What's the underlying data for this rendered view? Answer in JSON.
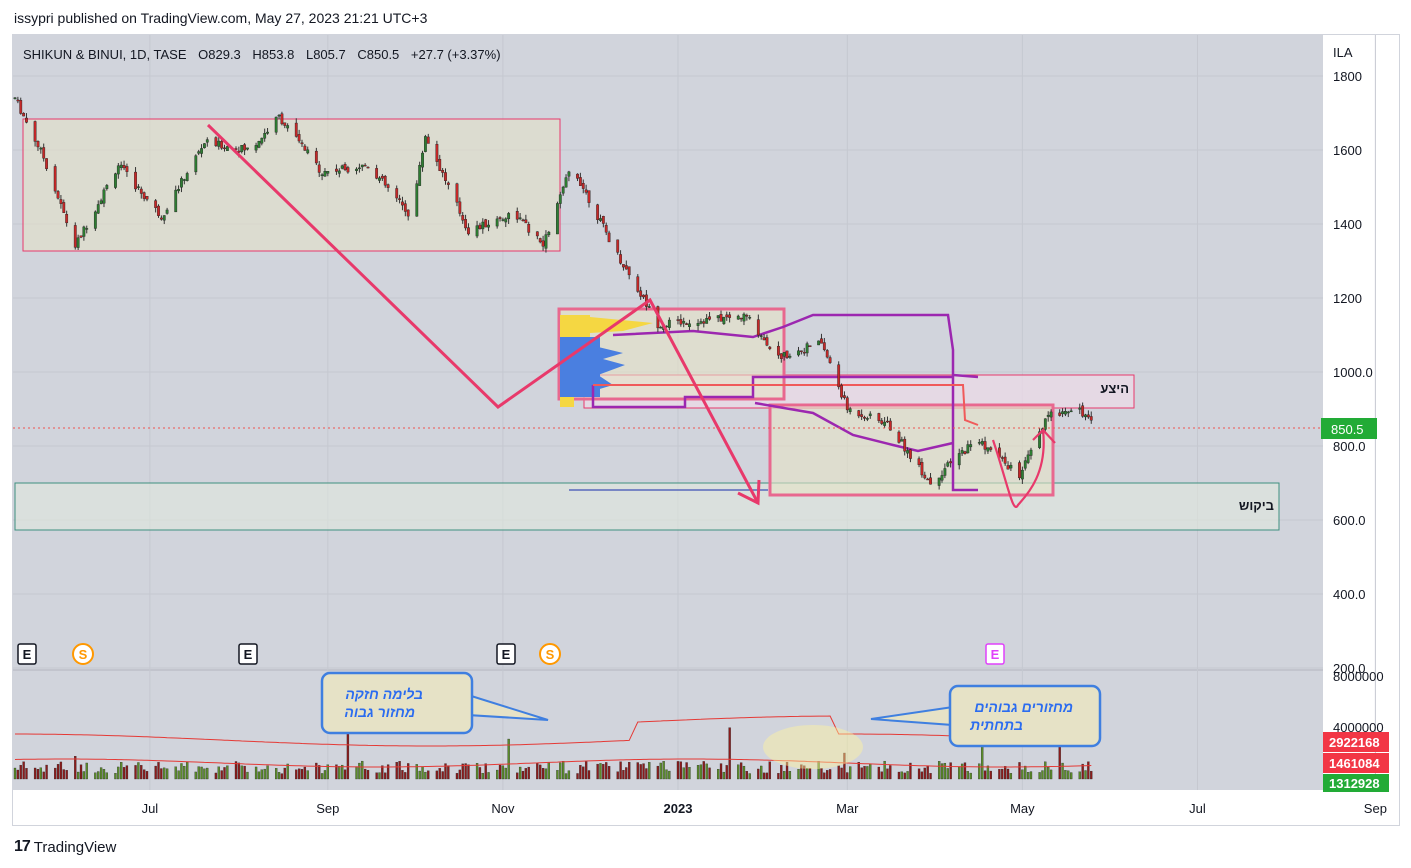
{
  "header": {
    "published": "issypri published on TradingView.com, May 27, 2023 21:21 UTC+3"
  },
  "symbol_line": {
    "name": "SHIKUN & BINUI, 1D, TASE",
    "o": "O829.3",
    "h": "H853.8",
    "l": "L805.7",
    "c": "C850.5",
    "chg": "+27.7 (+3.37%)"
  },
  "currency": "ILA",
  "colors": {
    "up": "#26a69a",
    "down": "#ef5350",
    "candle_up": "#2e7d32",
    "candle_down": "#c62828",
    "pink": "#e8396b",
    "purple": "#9c27b0",
    "bg": "#d1d4dc"
  },
  "chart_data": {
    "type": "candlestick",
    "title": "SHIKUN & BINUI, 1D, TASE",
    "ylim": [
      200,
      1850
    ],
    "yticks": [
      "1800",
      "1600",
      "1400",
      "1200",
      "1000.0",
      "800.0",
      "600.0",
      "400.0",
      "200.0"
    ],
    "xticks": [
      "Jul",
      "Sep",
      "Nov",
      "2023",
      "Mar",
      "May",
      "Jul",
      "Sep"
    ],
    "price_path": [
      [
        "2022-05-15",
        1740
      ],
      [
        "2022-05-25",
        1580
      ],
      [
        "2022-06-05",
        1340
      ],
      [
        "2022-06-20",
        1560
      ],
      [
        "2022-07-05",
        1420
      ],
      [
        "2022-07-20",
        1620
      ],
      [
        "2022-08-05",
        1600
      ],
      [
        "2022-08-15",
        1690
      ],
      [
        "2022-08-30",
        1540
      ],
      [
        "2022-09-15",
        1560
      ],
      [
        "2022-09-30",
        1420
      ],
      [
        "2022-10-05",
        1640
      ],
      [
        "2022-10-20",
        1380
      ],
      [
        "2022-11-05",
        1430
      ],
      [
        "2022-11-15",
        1340
      ],
      [
        "2022-11-25",
        1560
      ],
      [
        "2022-12-10",
        1330
      ],
      [
        "2022-12-25",
        1130
      ],
      [
        "2023-01-10",
        1140
      ],
      [
        "2023-01-25",
        1150
      ],
      [
        "2023-02-05",
        1040
      ],
      [
        "2023-02-20",
        1080
      ],
      [
        "2023-03-01",
        900
      ],
      [
        "2023-03-15",
        860
      ],
      [
        "2023-03-30",
        700
      ],
      [
        "2023-04-15",
        820
      ],
      [
        "2023-04-30",
        720
      ],
      [
        "2023-05-10",
        880
      ],
      [
        "2023-05-20",
        910
      ],
      [
        "2023-05-26",
        850.5
      ]
    ],
    "last_price": "850.5",
    "volume_axis": [
      "8000000",
      "4000000"
    ],
    "volume_labels": {
      "v1": "2922168",
      "v2": "1461084",
      "v3": "1312928"
    },
    "events": [
      "E",
      "S",
      "E",
      "E",
      "S",
      "E"
    ],
    "annotations": {
      "supply": "היצע",
      "demand": "ביקוש",
      "callout1_line1": "בלימה חזקה",
      "callout1_line2": "מחזור גבוה",
      "callout2_line1": "מחזורים גבוהים",
      "callout2_line2": "בתחתית"
    }
  },
  "footer": {
    "brand": "TradingView"
  }
}
